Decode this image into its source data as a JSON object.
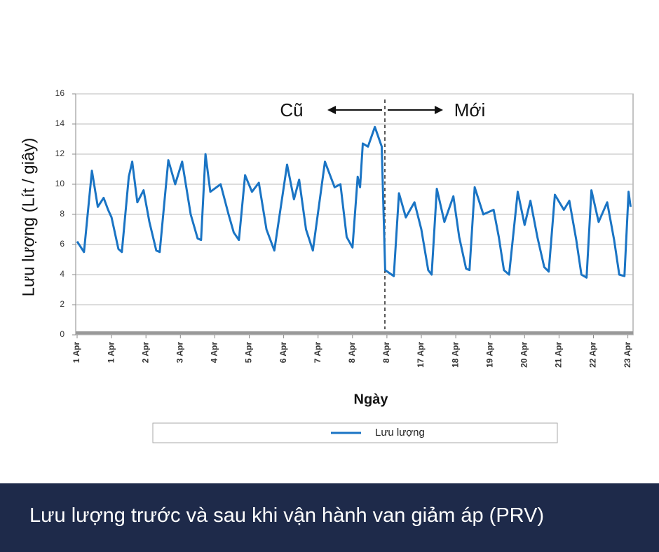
{
  "chart_data": {
    "type": "line",
    "ylabel": "Lưu lượng (Lít / giây)",
    "xlabel": "Ngày",
    "annotations": [
      "Cũ",
      "Mới"
    ],
    "caption": "Lưu lượng trước và sau khi vận hành van giảm áp (PRV)",
    "xlim": [
      0,
      16.2
    ],
    "ylim": [
      0,
      16
    ],
    "yticks": [
      0,
      2,
      4,
      6,
      8,
      10,
      12,
      14,
      16
    ],
    "xticks": [
      {
        "value": 0,
        "label": "1 Apr"
      },
      {
        "value": 1,
        "label": "1 Apr"
      },
      {
        "value": 2,
        "label": "2 Apr"
      },
      {
        "value": 3,
        "label": "3 Apr"
      },
      {
        "value": 4,
        "label": "4 Apr"
      },
      {
        "value": 5,
        "label": "5 Apr"
      },
      {
        "value": 6,
        "label": "6 Apr"
      },
      {
        "value": 7,
        "label": "7 Apr"
      },
      {
        "value": 8,
        "label": "8 Apr"
      },
      {
        "value": 9,
        "label": "8 Apr"
      },
      {
        "value": 10,
        "label": "17 Apr"
      },
      {
        "value": 11,
        "label": "18 Apr"
      },
      {
        "value": 12,
        "label": "19 Apr"
      },
      {
        "value": 13,
        "label": "20 Apr"
      },
      {
        "value": 14,
        "label": "21 Apr"
      },
      {
        "value": 15,
        "label": "22 Apr"
      },
      {
        "value": 16,
        "label": "23 Apr"
      }
    ],
    "grid": true,
    "legend": "bottom",
    "x": [
      0,
      0.2,
      0.43,
      0.6,
      0.77,
      0.9,
      1.0,
      1.2,
      1.3,
      1.5,
      1.6,
      1.75,
      1.93,
      2.1,
      2.3,
      2.4,
      2.65,
      2.85,
      3.05,
      3.3,
      3.5,
      3.6,
      3.73,
      3.87,
      4.17,
      4.4,
      4.55,
      4.7,
      4.88,
      5.08,
      5.28,
      5.5,
      5.73,
      6.1,
      6.3,
      6.45,
      6.65,
      6.85,
      7.2,
      7.48,
      7.65,
      7.83,
      8.0,
      8.15,
      8.22,
      8.3,
      8.45,
      8.65,
      8.85,
      8.95,
      9.2,
      9.35,
      9.55,
      9.8,
      10.0,
      10.2,
      10.3,
      10.45,
      10.67,
      10.93,
      11.1,
      11.3,
      11.4,
      11.55,
      11.8,
      12.1,
      12.25,
      12.4,
      12.55,
      12.8,
      13.0,
      13.17,
      13.37,
      13.57,
      13.7,
      13.88,
      14.14,
      14.3,
      14.5,
      14.65,
      14.8,
      14.94,
      15.15,
      15.4,
      15.6,
      15.75,
      15.9,
      16.02,
      16.08
    ],
    "series": [
      {
        "name": "Lưu lượng",
        "color": "#1a74c4",
        "values": [
          6.2,
          5.5,
          10.9,
          8.5,
          9.1,
          8.3,
          7.8,
          5.7,
          5.5,
          10.5,
          11.5,
          8.8,
          9.6,
          7.5,
          5.6,
          5.5,
          11.6,
          10.0,
          11.5,
          8.0,
          6.4,
          6.3,
          12.0,
          9.5,
          10.0,
          8.0,
          6.8,
          6.3,
          10.6,
          9.5,
          10.1,
          7.0,
          5.6,
          11.3,
          9.0,
          10.3,
          7.0,
          5.6,
          11.5,
          9.8,
          10.0,
          6.5,
          5.8,
          10.5,
          9.8,
          12.7,
          12.5,
          13.8,
          12.5,
          4.3,
          3.9,
          9.4,
          7.8,
          8.8,
          7.0,
          4.3,
          4.0,
          9.7,
          7.5,
          9.2,
          6.5,
          4.4,
          4.3,
          9.8,
          8.0,
          8.3,
          6.5,
          4.3,
          4.0,
          9.5,
          7.3,
          8.9,
          6.5,
          4.5,
          4.2,
          9.3,
          8.3,
          8.9,
          6.3,
          4.0,
          3.8,
          9.6,
          7.5,
          8.8,
          6.3,
          4.0,
          3.9,
          9.5,
          8.5
        ]
      }
    ]
  }
}
